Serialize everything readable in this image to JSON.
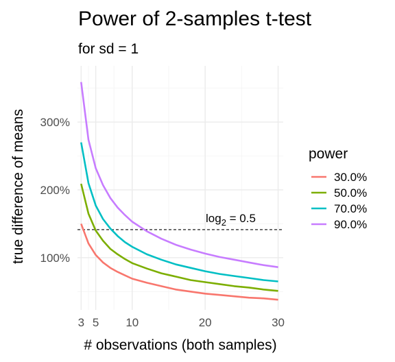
{
  "chart_data": {
    "type": "line",
    "title": "Power of 2-samples t-test",
    "subtitle": "for sd = 1",
    "xlabel": "# observations (both samples)",
    "ylabel": "true difference of means",
    "xlim": [
      2.5,
      30.7
    ],
    "ylim": [
      0.23,
      3.83
    ],
    "x_ticks": [
      3,
      5,
      10,
      20,
      30
    ],
    "x_tick_labels": [
      "3",
      "5",
      "10",
      "20",
      "30"
    ],
    "y_ticks": [
      1,
      2,
      3
    ],
    "y_tick_labels": [
      "100%",
      "200%",
      "300%"
    ],
    "grid": true,
    "legend": {
      "title": "power",
      "position": "right"
    },
    "x": [
      3,
      4,
      5,
      6,
      7,
      8,
      9,
      10,
      12,
      14,
      16,
      18,
      20,
      22,
      24,
      26,
      28,
      30
    ],
    "series": [
      {
        "name": "30.0%",
        "color": "#F8766D",
        "values": [
          1.5,
          1.21,
          1.04,
          0.93,
          0.85,
          0.79,
          0.74,
          0.69,
          0.63,
          0.58,
          0.53,
          0.5,
          0.47,
          0.45,
          0.43,
          0.41,
          0.4,
          0.38
        ]
      },
      {
        "name": "50.0%",
        "color": "#7CAE00",
        "values": [
          2.09,
          1.65,
          1.4,
          1.25,
          1.13,
          1.05,
          0.98,
          0.92,
          0.84,
          0.77,
          0.72,
          0.67,
          0.64,
          0.61,
          0.58,
          0.56,
          0.53,
          0.51
        ]
      },
      {
        "name": "70.0%",
        "color": "#00BFC4",
        "values": [
          2.7,
          2.1,
          1.77,
          1.57,
          1.43,
          1.32,
          1.23,
          1.16,
          1.05,
          0.97,
          0.9,
          0.85,
          0.8,
          0.76,
          0.73,
          0.7,
          0.67,
          0.65
        ]
      },
      {
        "name": "90.0%",
        "color": "#C77CFF",
        "values": [
          3.59,
          2.74,
          2.32,
          2.07,
          1.88,
          1.74,
          1.63,
          1.53,
          1.39,
          1.28,
          1.19,
          1.12,
          1.06,
          1.01,
          0.97,
          0.93,
          0.89,
          0.86
        ]
      }
    ],
    "hline": {
      "y": 1.4142,
      "style": "dashed",
      "label_main": "log",
      "label_sub": "2",
      "label_rest": " = 0.5"
    }
  }
}
